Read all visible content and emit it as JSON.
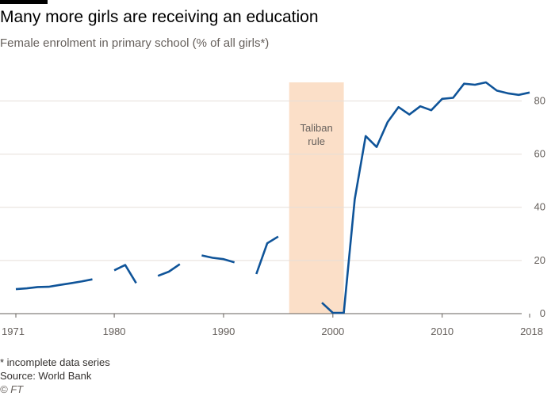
{
  "chart_data": {
    "type": "line",
    "title": "Many more girls are receiving an education",
    "subtitle": "Female enrolment in primary school (% of all girls*)",
    "xlabel": "",
    "ylabel": "",
    "xlim": [
      1971,
      2018
    ],
    "ylim": [
      0,
      87
    ],
    "x_ticks": [
      1971,
      1980,
      1990,
      2000,
      2010,
      2018
    ],
    "y_ticks": [
      0,
      20,
      40,
      60,
      80
    ],
    "grid": true,
    "y_axis_position": "right",
    "color": "#0f5499",
    "series": [
      {
        "name": "",
        "segments": [
          [
            [
              1971,
              9.2
            ],
            [
              1972,
              9.5
            ],
            [
              1973,
              10.0
            ],
            [
              1974,
              10.1
            ],
            [
              1975,
              10.8
            ],
            [
              1976,
              11.4
            ],
            [
              1977,
              12.1
            ],
            [
              1978,
              12.9
            ]
          ],
          [
            [
              1980,
              16.3
            ],
            [
              1981,
              18.3
            ],
            [
              1982,
              11.5
            ]
          ],
          [
            [
              1984,
              14.2
            ],
            [
              1985,
              15.8
            ],
            [
              1986,
              18.6
            ]
          ],
          [
            [
              1988,
              21.9
            ],
            [
              1989,
              21.0
            ],
            [
              1990,
              20.5
            ],
            [
              1991,
              19.3
            ]
          ],
          [
            [
              1993,
              14.9
            ],
            [
              1994,
              26.5
            ],
            [
              1995,
              29.0
            ]
          ],
          [
            [
              1999,
              4.1
            ],
            [
              2000,
              0.3
            ],
            [
              2001,
              0.3
            ],
            [
              2002,
              43.0
            ],
            [
              2003,
              66.8
            ],
            [
              2004,
              62.7
            ],
            [
              2005,
              72.0
            ],
            [
              2006,
              77.7
            ],
            [
              2007,
              74.9
            ],
            [
              2008,
              78.0
            ],
            [
              2009,
              76.5
            ],
            [
              2010,
              80.8
            ],
            [
              2011,
              81.2
            ],
            [
              2012,
              86.5
            ],
            [
              2013,
              86.1
            ],
            [
              2014,
              87.0
            ],
            [
              2015,
              83.9
            ],
            [
              2016,
              82.9
            ],
            [
              2017,
              82.3
            ],
            [
              2018,
              83.2
            ]
          ]
        ]
      }
    ],
    "shaded_regions": [
      {
        "x": [
          1996,
          2001
        ],
        "label_line1": "Taliban",
        "label_line2": "rule",
        "color": "#fbdfc8"
      }
    ],
    "footnote": "* incomplete data series",
    "source": "Source: World Bank"
  },
  "copyright": "© FT"
}
